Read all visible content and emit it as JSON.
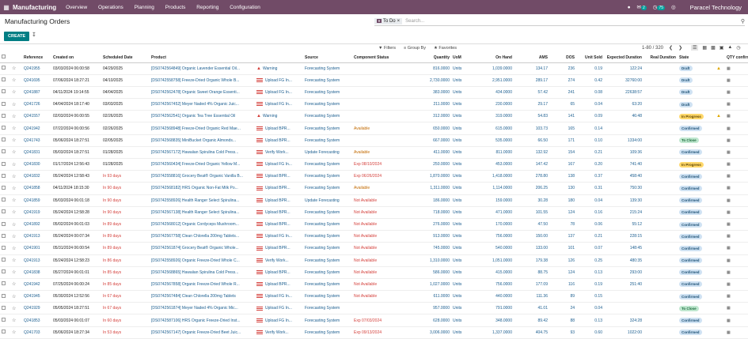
{
  "topbar": {
    "app_name": "Manufacturing",
    "menu": [
      "Overview",
      "Operations",
      "Planning",
      "Products",
      "Reporting",
      "Configuration"
    ],
    "chat_count": "2",
    "activity_count": "75",
    "company": "Paracel Technology"
  },
  "control": {
    "title": "Manufacturing Orders",
    "create_label": "CREATE",
    "search_facet": "To Do",
    "search_placeholder": "Search...",
    "filters_label": "Filters",
    "groupby_label": "Group By",
    "favorites_label": "Favorites",
    "pager": "1-80 / 320"
  },
  "colors": {
    "topbar": "#714B67",
    "create": "#017E84",
    "link": "#1a5d8f",
    "danger": "#d43f3a"
  },
  "columns": [
    "Reference",
    "Created on",
    "Scheduled Date",
    "Product",
    "",
    "Source",
    "Component Status",
    "Quantity",
    "UoM",
    "On Hand",
    "AMS",
    "DOS",
    "Unit Sold",
    "Expected Duration",
    "Real Duration",
    "State",
    "",
    "QTY confirmed by"
  ],
  "rows": [
    {
      "ref": "Q241955",
      "created": "03/03/2024 06:00:58",
      "sched": "04/29/2025",
      "sched_red": false,
      "product": "[DS0742564849] Organic Lavender Essential Oil...",
      "mid": "Warning",
      "mid_type": "warn",
      "source": "Forecasting System",
      "comp": "",
      "comp_type": "",
      "qty": "816.0000",
      "uom": "Units",
      "onhand": "1,039.0000",
      "ams": "134.17",
      "dos": "236",
      "sold": "0.19",
      "exp": "122:24",
      "real": "",
      "state": "Draft",
      "state_type": "draft",
      "warn_icon": true
    },
    {
      "ref": "Q241695",
      "created": "07/06/2024 18:27:21",
      "sched": "04/10/2025",
      "sched_red": false,
      "product": "[DS0742558758] Freeze-Dried Organic Whole B...",
      "mid": "Upload FG In...",
      "mid_type": "flag",
      "source": "Forecasting System",
      "comp": "",
      "comp_type": "",
      "qty": "2,730.0000",
      "uom": "Units",
      "onhand": "2,951.0000",
      "ams": "289.17",
      "dos": "274",
      "sold": "0.42",
      "exp": "32760:00",
      "real": "",
      "state": "Draft",
      "state_type": "draft",
      "warn_icon": false
    },
    {
      "ref": "Q241887",
      "created": "04/11/2024 19:14:55",
      "sched": "04/04/2025",
      "sched_red": false,
      "product": "[DS0742562478] Organic Sweet Orange Essenti...",
      "mid": "Upload FG In...",
      "mid_type": "flag",
      "source": "Forecasting System",
      "comp": "",
      "comp_type": "",
      "qty": "383.0000",
      "uom": "Units",
      "onhand": "434.0000",
      "ams": "57.42",
      "dos": "241",
      "sold": "0.08",
      "exp": "22638:57",
      "real": "",
      "state": "Draft",
      "state_type": "draft",
      "warn_icon": false
    },
    {
      "ref": "Q241726",
      "created": "04/04/2024 18:17:40",
      "sched": "03/03/2025",
      "sched_red": false,
      "product": "[DS0742567452] Meyer Naded 4% Organic Juic...",
      "mid": "Upload FG In...",
      "mid_type": "flag",
      "source": "Forecasting System",
      "comp": "",
      "comp_type": "",
      "qty": "211.0000",
      "uom": "Units",
      "onhand": "230.0000",
      "ams": "29.17",
      "dos": "65",
      "sold": "0.04",
      "exp": "63:20",
      "real": "",
      "state": "Draft",
      "state_type": "draft",
      "warn_icon": false
    },
    {
      "ref": "Q241557",
      "created": "02/03/2024 06:00:55",
      "sched": "02/26/2025",
      "sched_red": false,
      "product": "[DS0742562541] Organic Tea Tree Essential Oil",
      "mid": "Warning",
      "mid_type": "warn",
      "source": "Forecasting System",
      "comp": "",
      "comp_type": "",
      "qty": "312.0000",
      "uom": "Units",
      "onhand": "319.0000",
      "ams": "54.83",
      "dos": "141",
      "sold": "0.09",
      "exp": "46:48",
      "real": "",
      "state": "In Progress",
      "state_type": "progress",
      "warn_icon": true
    },
    {
      "ref": "Q241942",
      "created": "07/22/2024 06:00:56",
      "sched": "02/26/2025",
      "sched_red": false,
      "product": "[DS0742568948] Freeze-Dried Organic Red Mae...",
      "mid": "Upload BPR...",
      "mid_type": "flag",
      "source": "Forecasting System",
      "comp": "Available",
      "comp_type": "",
      "qty": "650.0000",
      "uom": "Units",
      "onhand": "615.0000",
      "ams": "103.73",
      "dos": "165",
      "sold": "0.14",
      "exp": "",
      "real": "",
      "state": "Confirmed",
      "state_type": "confirmed",
      "warn_icon": false
    },
    {
      "ref": "Q241743",
      "created": "05/06/2024 18:27:51",
      "sched": "02/05/2025",
      "sched_red": false,
      "product": "[DS0742568835] MiniBucket Organic Almonds...",
      "mid": "Upload BPR...",
      "mid_type": "flag",
      "source": "Forecasting System",
      "comp": "",
      "comp_type": "",
      "qty": "667.0000",
      "uom": "Units",
      "onhand": "535.0000",
      "ams": "66.50",
      "dos": "171",
      "sold": "0.10",
      "exp": "1334:00",
      "real": "",
      "state": "To Close",
      "state_type": "toclose",
      "warn_icon": false
    },
    {
      "ref": "Q241831",
      "created": "05/03/2024 18:27:51",
      "sched": "01/28/2025",
      "sched_red": false,
      "product": "[DS0742567172] Hawaiian Spirulina Cold Press...",
      "mid": "Verify Work...",
      "mid_type": "flag",
      "source": "Update Forecasting",
      "comp": "Available",
      "comp_type": "",
      "qty": "411.0000",
      "uom": "Units",
      "onhand": "811.0000",
      "ams": "132.92",
      "dos": "154",
      "sold": "0.21",
      "exp": "109:36",
      "real": "",
      "state": "Confirmed",
      "state_type": "confirmed",
      "warn_icon": false
    },
    {
      "ref": "Q241830",
      "created": "01/17/2024 12:56:43",
      "sched": "01/28/2025",
      "sched_red": false,
      "product": "[DS0742560434] Freeze-Dried Organic Yellow M...",
      "mid": "Upload FG In...",
      "mid_type": "flag",
      "source": "Forecasting System",
      "comp": "Exp 08/10/2024",
      "comp_type": "",
      "qty": "250.0000",
      "uom": "Units",
      "onhand": "453.0000",
      "ams": "147.42",
      "dos": "167",
      "sold": "0.20",
      "exp": "741:40",
      "real": "",
      "state": "In Progress",
      "state_type": "progress",
      "warn_icon": false
    },
    {
      "ref": "Q241832",
      "created": "05/24/2024 12:58:43",
      "sched": "In 93 days",
      "sched_red": true,
      "product": "[DS0742558816] Grocery Beat® Organic Vanilla B...",
      "mid": "Upload BPR...",
      "mid_type": "flag",
      "source": "Forecasting System",
      "comp": "Exp 06/26/2024",
      "comp_type": "",
      "qty": "1,870.0000",
      "uom": "Units",
      "onhand": "1,418.0000",
      "ams": "278.80",
      "dos": "138",
      "sold": "0.37",
      "exp": "458:40",
      "real": "",
      "state": "Confirmed",
      "state_type": "confirmed",
      "warn_icon": false
    },
    {
      "ref": "Q241858",
      "created": "04/11/2024 18:15:30",
      "sched": "In 90 days",
      "sched_red": true,
      "product": "[DS0742568182] HRS Organic Non-Fat Milk Po...",
      "mid": "Upload BPR...",
      "mid_type": "flag",
      "source": "Forecasting System",
      "comp": "Available",
      "comp_type": "",
      "qty": "1,311.0000",
      "uom": "Units",
      "onhand": "1,114.0000",
      "ams": "206.25",
      "dos": "130",
      "sold": "0.31",
      "exp": "750:30",
      "real": "",
      "state": "Confirmed",
      "state_type": "confirmed",
      "warn_icon": false
    },
    {
      "ref": "Q241859",
      "created": "05/03/2024 06:01:18",
      "sched": "In 90 days",
      "sched_red": true,
      "product": "[DS0742558926] Health Ranger Select Spirulina...",
      "mid": "Upload BPR...",
      "mid_type": "flag",
      "source": "Update Forecasting",
      "comp": "Not Available",
      "comp_type": "red",
      "qty": "186.0000",
      "uom": "Units",
      "onhand": "159.0000",
      "ams": "30.28",
      "dos": "180",
      "sold": "0.04",
      "exp": "139:30",
      "real": "",
      "state": "Confirmed",
      "state_type": "confirmed",
      "warn_icon": false
    },
    {
      "ref": "Q241919",
      "created": "05/24/2024 12:58:28",
      "sched": "In 90 days",
      "sched_red": true,
      "product": "[DS0742567138] Health Ranger Select Spirulina...",
      "mid": "Upload BPR...",
      "mid_type": "flag",
      "source": "Forecasting System",
      "comp": "Not Available",
      "comp_type": "red",
      "qty": "718.0000",
      "uom": "Units",
      "onhand": "471.0000",
      "ams": "101.55",
      "dos": "124",
      "sold": "0.16",
      "exp": "215:24",
      "real": "",
      "state": "Confirmed",
      "state_type": "confirmed",
      "warn_icon": false
    },
    {
      "ref": "Q241892",
      "created": "05/02/2024 06:01:03",
      "sched": "In 89 days",
      "sched_red": true,
      "product": "[DS0742568012] Organic Cordyceps Mushroom...",
      "mid": "Upload BPR...",
      "mid_type": "flag",
      "source": "Forecasting System",
      "comp": "Not Available",
      "comp_type": "red",
      "qty": "276.0000",
      "uom": "Units",
      "onhand": "170.0000",
      "ams": "47.50",
      "dos": "78",
      "sold": "0.06",
      "exp": "55:12",
      "real": "",
      "state": "Confirmed",
      "state_type": "confirmed",
      "warn_icon": false
    },
    {
      "ref": "Q241913",
      "created": "05/24/2024 00:07:34",
      "sched": "In 89 days",
      "sched_red": true,
      "product": "[DS0742567758] Clean Chlorella 200mg Tablets...",
      "mid": "Upload FG In...",
      "mid_type": "flag",
      "source": "Forecasting System",
      "comp": "Not Available",
      "comp_type": "red",
      "qty": "913.0000",
      "uom": "Units",
      "onhand": "756.0000",
      "ams": "150.00",
      "dos": "137",
      "sold": "0.21",
      "exp": "228:15",
      "real": "",
      "state": "Confirmed",
      "state_type": "confirmed",
      "warn_icon": false
    },
    {
      "ref": "Q241901",
      "created": "05/31/2024 06:00:54",
      "sched": "In 89 days",
      "sched_red": true,
      "product": "[DS0742561874] Grocery Beat® Organic Whole...",
      "mid": "Upload BPR...",
      "mid_type": "flag",
      "source": "Forecasting System",
      "comp": "Not Available",
      "comp_type": "red",
      "qty": "745.0000",
      "uom": "Units",
      "onhand": "540.0000",
      "ams": "133.00",
      "dos": "101",
      "sold": "0.07",
      "exp": "148:45",
      "real": "",
      "state": "Confirmed",
      "state_type": "confirmed",
      "warn_icon": false
    },
    {
      "ref": "Q241913",
      "created": "05/24/2024 12:58:23",
      "sched": "In 86 days",
      "sched_red": true,
      "product": "[DS0742558926] Organic Freeze-Dried Whole C...",
      "mid": "Verify Work...",
      "mid_type": "flag",
      "source": "Forecasting System",
      "comp": "Not Available",
      "comp_type": "red",
      "qty": "1,310.0000",
      "uom": "Units",
      "onhand": "1,051.0000",
      "ams": "179.38",
      "dos": "126",
      "sold": "0.25",
      "exp": "480:35",
      "real": "",
      "state": "Confirmed",
      "state_type": "confirmed",
      "warn_icon": false
    },
    {
      "ref": "Q241838",
      "created": "05/27/2024 06:01:01",
      "sched": "In 85 days",
      "sched_red": true,
      "product": "[DS0742568865] Hawaiian Spirulina Cold Press...",
      "mid": "Upload BPR...",
      "mid_type": "flag",
      "source": "Forecasting System",
      "comp": "Not Available",
      "comp_type": "red",
      "qty": "586.0000",
      "uom": "Units",
      "onhand": "415.0000",
      "ams": "88.75",
      "dos": "124",
      "sold": "0.13",
      "exp": "293:00",
      "real": "",
      "state": "Confirmed",
      "state_type": "confirmed",
      "warn_icon": false
    },
    {
      "ref": "Q241942",
      "created": "07/25/2024 06:00:24",
      "sched": "In 85 days",
      "sched_red": true,
      "product": "[DS0742567858] Organic Freeze-Dried Whole R...",
      "mid": "Upload BPR...",
      "mid_type": "flag",
      "source": "Forecasting System",
      "comp": "Not Available",
      "comp_type": "red",
      "qty": "1,027.0000",
      "uom": "Units",
      "onhand": "756.0000",
      "ams": "177.09",
      "dos": "116",
      "sold": "0.19",
      "exp": "251:40",
      "real": "",
      "state": "Confirmed",
      "state_type": "confirmed",
      "warn_icon": false
    },
    {
      "ref": "Q241945",
      "created": "05/30/2024 12:52:56",
      "sched": "In 67 days",
      "sched_red": true,
      "product": "[DS0742567484] Clean Chlorella 200mg Tablets",
      "mid": "Upload FG In...",
      "mid_type": "flag",
      "source": "Forecasting System",
      "comp": "Not Available",
      "comp_type": "red",
      "qty": "611.0000",
      "uom": "Units",
      "onhand": "440.0000",
      "ams": "111.36",
      "dos": "89",
      "sold": "0.15",
      "exp": "",
      "real": "",
      "state": "Confirmed",
      "state_type": "confirmed",
      "warn_icon": false
    },
    {
      "ref": "Q241929",
      "created": "05/05/2024 18:27:51",
      "sched": "In 67 days",
      "sched_red": true,
      "product": "[DS0742561874] Meyer Naded 4% Organic Mic...",
      "mid": "Upload FG In...",
      "mid_type": "flag",
      "source": "Forecasting System",
      "comp": "",
      "comp_type": "",
      "qty": "957.0000",
      "uom": "Units",
      "onhand": "791.0000",
      "ams": "41.01",
      "dos": "24",
      "sold": "0.04",
      "exp": "",
      "real": "",
      "state": "To Close",
      "state_type": "toclose",
      "warn_icon": false
    },
    {
      "ref": "Q241853",
      "created": "05/03/2024 06:01:07",
      "sched": "In 60 days",
      "sched_red": true,
      "product": "[DS0742587106] HRS Organic Freeze-Dried Inst...",
      "mid": "Upload FG In...",
      "mid_type": "flag",
      "source": "Forecasting System",
      "comp": "Exp 07/03/2024",
      "comp_type": "",
      "qty": "628.0000",
      "uom": "Units",
      "onhand": "348.0000",
      "ams": "89.42",
      "dos": "88",
      "sold": "0.13",
      "exp": "324:28",
      "real": "",
      "state": "Confirmed",
      "state_type": "confirmed",
      "warn_icon": false
    },
    {
      "ref": "Q241703",
      "created": "05/06/2024 18:27:34",
      "sched": "In 53 days",
      "sched_red": true,
      "product": "[DS0742567147] Organic Freeze-Dried Beet Juic...",
      "mid": "Verify Work...",
      "mid_type": "flag",
      "source": "Forecasting System",
      "comp": "Exp 09/13/2024",
      "comp_type": "",
      "qty": "3,006.0000",
      "uom": "Units",
      "onhand": "1,337.0000",
      "ams": "404.75",
      "dos": "93",
      "sold": "0.60",
      "exp": "1022:00",
      "real": "",
      "state": "Confirmed",
      "state_type": "confirmed",
      "warn_icon": false
    }
  ]
}
